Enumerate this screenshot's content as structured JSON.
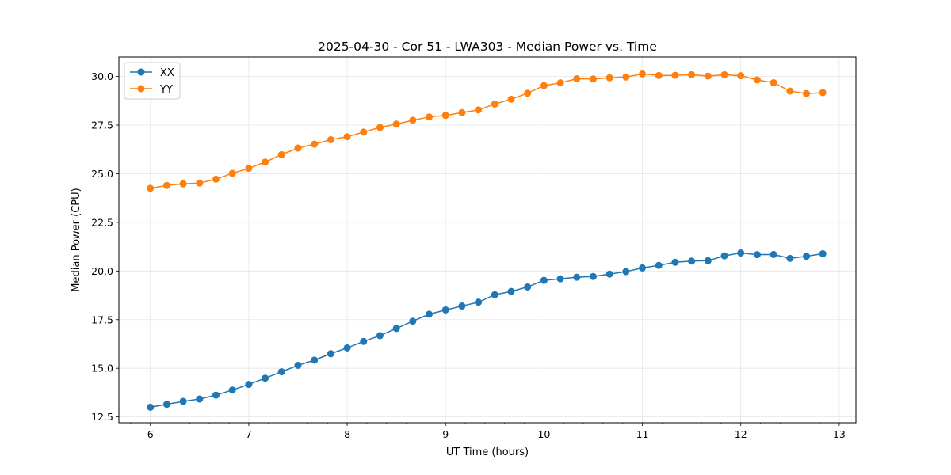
{
  "chart_data": {
    "type": "line",
    "title": "2025-04-30 - Cor 51 - LWA303 - Median Power vs. Time",
    "xlabel": "UT Time (hours)",
    "ylabel": "Median Power (CPU)",
    "xlim": [
      5.68,
      13.17
    ],
    "ylim": [
      12.2,
      31.0
    ],
    "xticks": [
      6,
      7,
      8,
      9,
      10,
      11,
      12,
      13
    ],
    "xtick_labels": [
      "6",
      "7",
      "8",
      "9",
      "10",
      "11",
      "12",
      "13"
    ],
    "yticks": [
      12.5,
      15.0,
      17.5,
      20.0,
      22.5,
      25.0,
      27.5,
      30.0
    ],
    "ytick_labels": [
      "12.5",
      "15.0",
      "17.5",
      "20.0",
      "22.5",
      "25.0",
      "27.5",
      "30.0"
    ],
    "grid": true,
    "legend_position": "top-left",
    "x": [
      6.0,
      6.1667,
      6.3333,
      6.5,
      6.6667,
      6.8333,
      7.0,
      7.1667,
      7.3333,
      7.5,
      7.6667,
      7.8333,
      8.0,
      8.1667,
      8.3333,
      8.5,
      8.6667,
      8.8333,
      9.0,
      9.1667,
      9.3333,
      9.5,
      9.6667,
      9.8333,
      10.0,
      10.1667,
      10.3333,
      10.5,
      10.6667,
      10.8333,
      11.0,
      11.1667,
      11.3333,
      11.5,
      11.6667,
      11.8333,
      12.0,
      12.1667,
      12.3333,
      12.5,
      12.6667,
      12.8333
    ],
    "series": [
      {
        "name": "XX",
        "color": "#1f77b4",
        "values": [
          13.0,
          13.15,
          13.3,
          13.42,
          13.62,
          13.88,
          14.17,
          14.49,
          14.82,
          15.15,
          15.42,
          15.75,
          16.05,
          16.38,
          16.68,
          17.05,
          17.42,
          17.78,
          18.0,
          18.2,
          18.4,
          18.78,
          18.95,
          19.18,
          19.52,
          19.6,
          19.68,
          19.72,
          19.84,
          19.97,
          20.16,
          20.29,
          20.45,
          20.51,
          20.53,
          20.78,
          20.93,
          20.84,
          20.85,
          20.65,
          20.76,
          20.89
        ]
      },
      {
        "name": "YY",
        "color": "#ff7f0e",
        "values": [
          24.25,
          24.4,
          24.48,
          24.52,
          24.72,
          25.02,
          25.28,
          25.6,
          25.98,
          26.32,
          26.52,
          26.75,
          26.9,
          27.14,
          27.38,
          27.55,
          27.75,
          27.92,
          28.0,
          28.14,
          28.28,
          28.58,
          28.83,
          29.14,
          29.53,
          29.67,
          29.88,
          29.87,
          29.93,
          29.97,
          30.13,
          30.05,
          30.06,
          30.09,
          30.02,
          30.09,
          30.04,
          29.82,
          29.68,
          29.25,
          29.12,
          29.17
        ]
      }
    ]
  }
}
